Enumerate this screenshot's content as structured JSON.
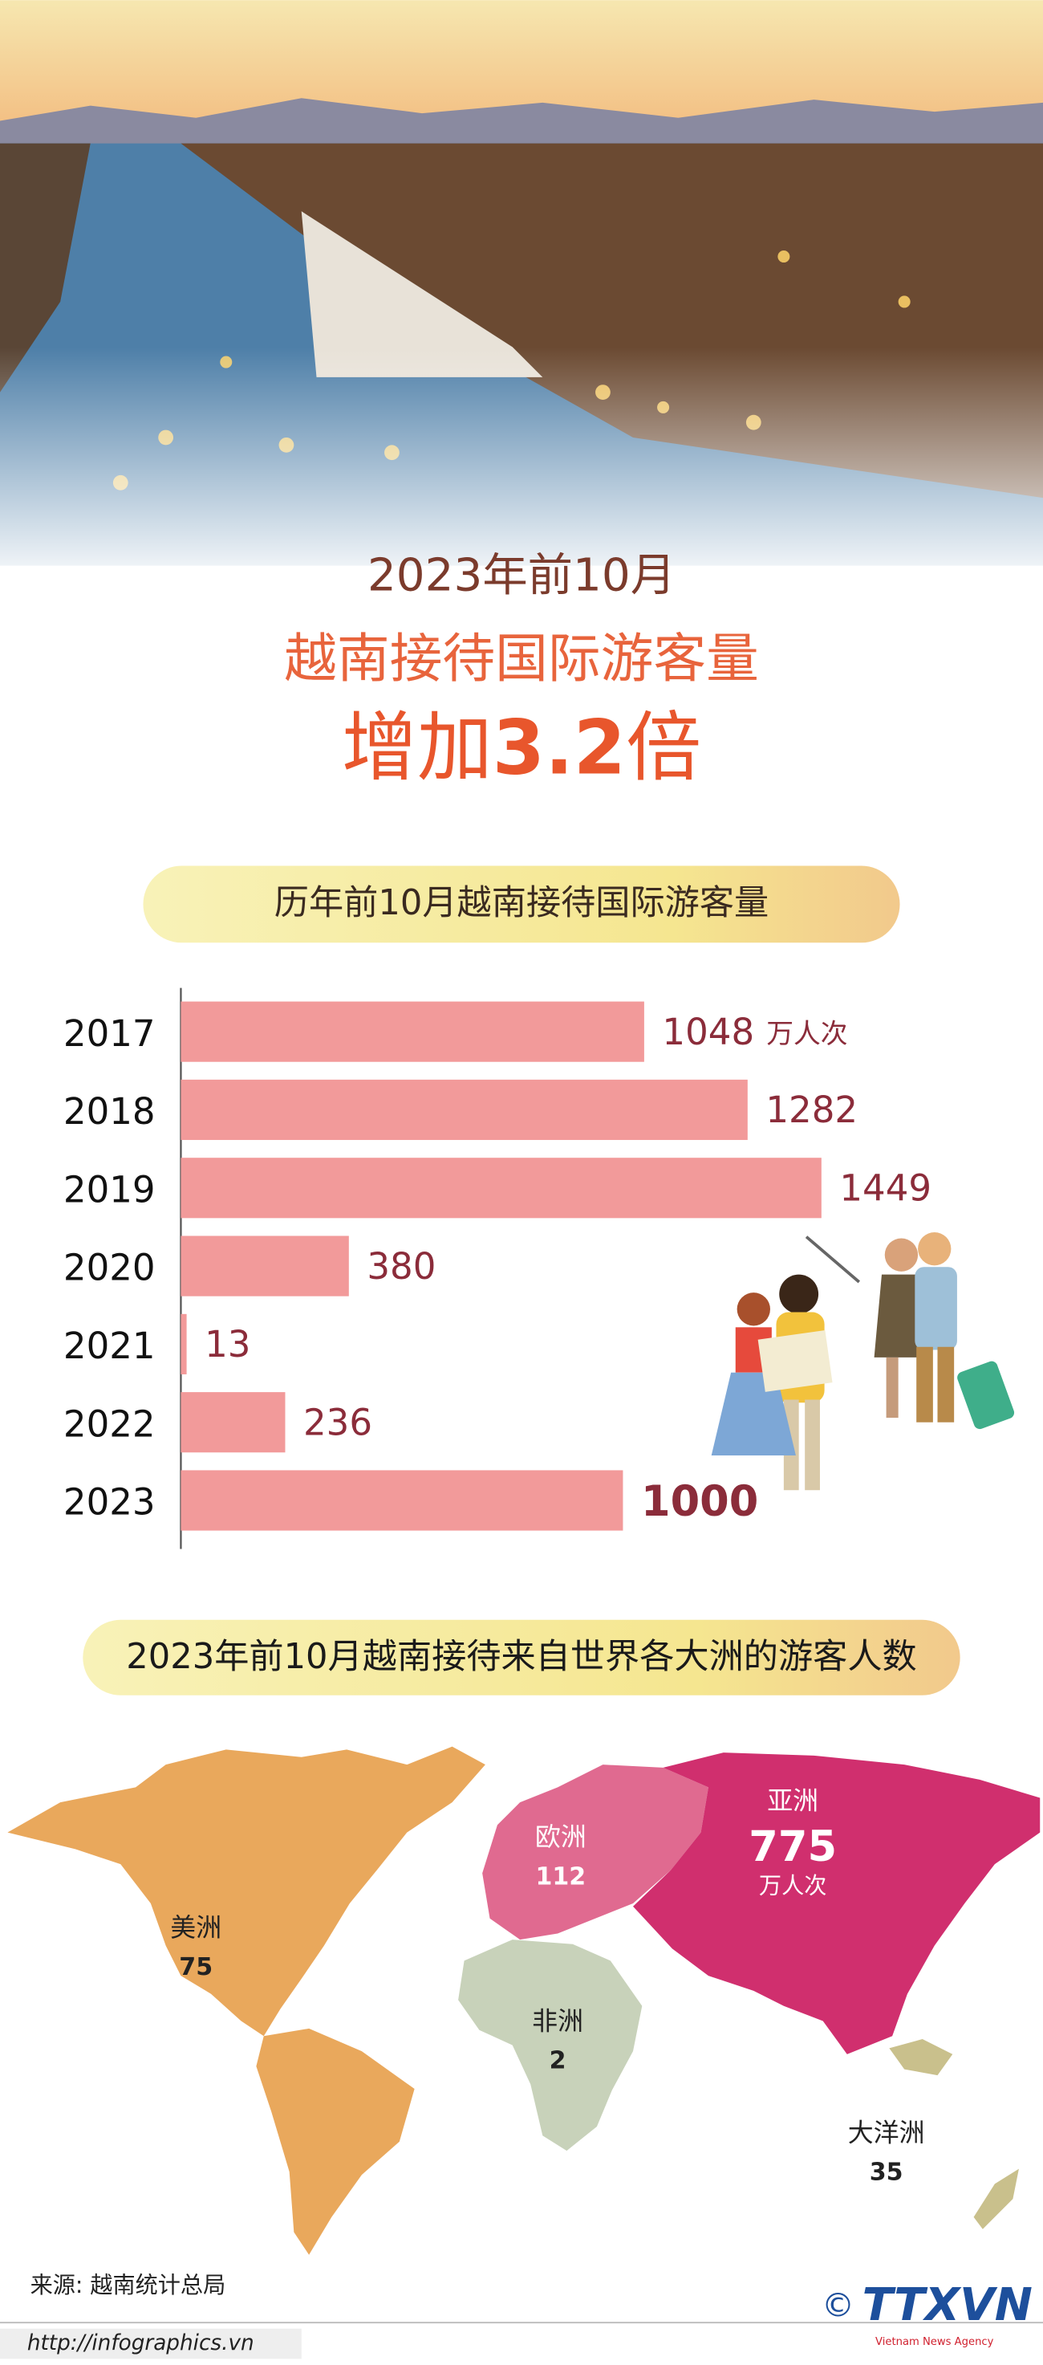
{
  "header": {
    "line1": "2023年前10月",
    "line2": "越南接待国际游客量",
    "line3_prefix": "增加",
    "line3_number": 3.2,
    "line3_suffix": "倍"
  },
  "chart_data": {
    "type": "bar",
    "orientation": "horizontal",
    "title": "历年前10月越南接待国际游客量",
    "categories": [
      "2017",
      "2018",
      "2019",
      "2020",
      "2021",
      "2022",
      "2023"
    ],
    "values": [
      1048,
      1282,
      1449,
      380,
      13,
      236,
      1000
    ],
    "unit": "万人次",
    "color": "#f29a9a"
  },
  "map": {
    "title": "2023年前10月越南接待来自世界各大洲的游客人数",
    "unit": "万人次",
    "regions": [
      {
        "name": "美洲",
        "value": 75,
        "color": "#e9a85c"
      },
      {
        "name": "欧洲",
        "value": 112,
        "color": "#e06a90"
      },
      {
        "name": "亚洲",
        "value": 775,
        "color": "#d02f6e"
      },
      {
        "name": "非洲",
        "value": 2,
        "color": "#c8d2ba"
      },
      {
        "name": "大洋洲",
        "value": 35,
        "color": "#c9c08c"
      }
    ]
  },
  "footer": {
    "source": "来源: 越南统计总局",
    "url": "http://infographics.vn",
    "copyright": "©",
    "logo": "TTXVN",
    "agency": "Vietnam News Agency"
  }
}
